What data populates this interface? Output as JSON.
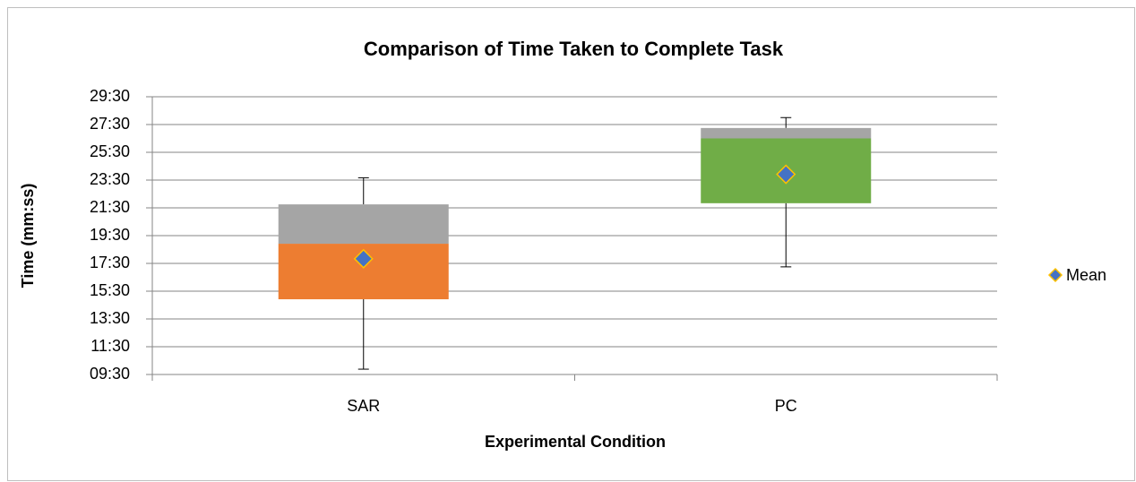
{
  "chart_data": {
    "type": "box",
    "title": "Comparison of Time Taken to Complete Task",
    "x_label": "Experimental Condition",
    "y_label": "Time (mm:ss)",
    "categories": [
      "SAR",
      "PC"
    ],
    "min": [
      593,
      1035
    ],
    "q1": [
      895,
      1310
    ],
    "median": [
      1135,
      1590
    ],
    "q3": [
      1305,
      1635
    ],
    "max": [
      1420,
      1680
    ],
    "lower_colors": [
      "#ed7d31",
      "#70ad47"
    ],
    "upper_color": "#a5a5a5",
    "mean_series": {
      "name": "Mean",
      "color": "#4472c4",
      "edge_color": "#ffc000",
      "values": [
        1070,
        1435
      ]
    },
    "legend": "right",
    "grid": true,
    "ylim": [
      570,
      1770
    ],
    "yticks": [
      {
        "value": 570,
        "label": "09:30"
      },
      {
        "value": 690,
        "label": "11:30"
      },
      {
        "value": 810,
        "label": "13:30"
      },
      {
        "value": 930,
        "label": "15:30"
      },
      {
        "value": 1050,
        "label": "17:30"
      },
      {
        "value": 1170,
        "label": "19:30"
      },
      {
        "value": 1290,
        "label": "21:30"
      },
      {
        "value": 1410,
        "label": "23:30"
      },
      {
        "value": 1530,
        "label": "25:30"
      },
      {
        "value": 1650,
        "label": "27:30"
      },
      {
        "value": 1770,
        "label": "29:30"
      }
    ]
  }
}
